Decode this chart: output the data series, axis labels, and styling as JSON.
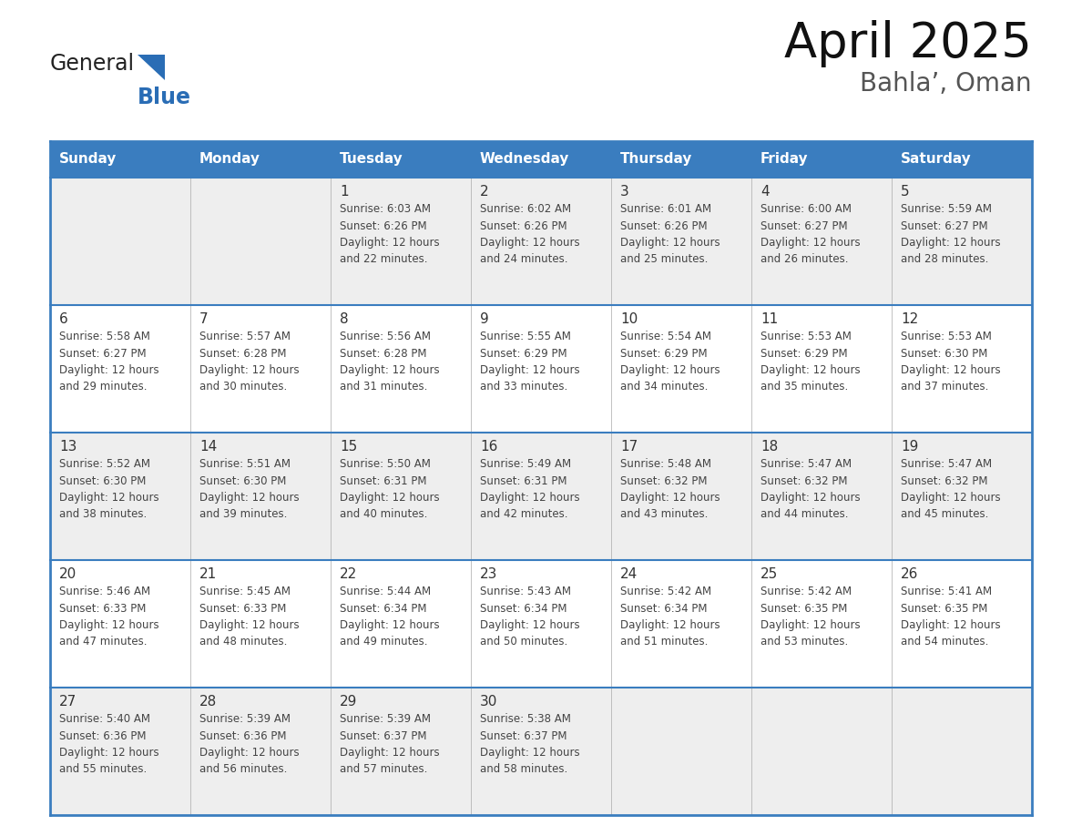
{
  "title": "April 2025",
  "subtitle": "Bahla’, Oman",
  "days_of_week": [
    "Sunday",
    "Monday",
    "Tuesday",
    "Wednesday",
    "Thursday",
    "Friday",
    "Saturday"
  ],
  "header_bg": "#3a7dbf",
  "header_text": "#FFFFFF",
  "row_bg_odd": "#eeeeee",
  "row_bg_even": "#ffffff",
  "border_color": "#3a7dbf",
  "cell_border_color": "#aaaaaa",
  "day_number_color": "#333333",
  "text_color": "#444444",
  "logo_general_color": "#222222",
  "logo_blue_color": "#2a6db5",
  "title_color": "#111111",
  "subtitle_color": "#555555",
  "weeks": [
    [
      {
        "day": null,
        "text": ""
      },
      {
        "day": null,
        "text": ""
      },
      {
        "day": 1,
        "text": "Sunrise: 6:03 AM\nSunset: 6:26 PM\nDaylight: 12 hours\nand 22 minutes."
      },
      {
        "day": 2,
        "text": "Sunrise: 6:02 AM\nSunset: 6:26 PM\nDaylight: 12 hours\nand 24 minutes."
      },
      {
        "day": 3,
        "text": "Sunrise: 6:01 AM\nSunset: 6:26 PM\nDaylight: 12 hours\nand 25 minutes."
      },
      {
        "day": 4,
        "text": "Sunrise: 6:00 AM\nSunset: 6:27 PM\nDaylight: 12 hours\nand 26 minutes."
      },
      {
        "day": 5,
        "text": "Sunrise: 5:59 AM\nSunset: 6:27 PM\nDaylight: 12 hours\nand 28 minutes."
      }
    ],
    [
      {
        "day": 6,
        "text": "Sunrise: 5:58 AM\nSunset: 6:27 PM\nDaylight: 12 hours\nand 29 minutes."
      },
      {
        "day": 7,
        "text": "Sunrise: 5:57 AM\nSunset: 6:28 PM\nDaylight: 12 hours\nand 30 minutes."
      },
      {
        "day": 8,
        "text": "Sunrise: 5:56 AM\nSunset: 6:28 PM\nDaylight: 12 hours\nand 31 minutes."
      },
      {
        "day": 9,
        "text": "Sunrise: 5:55 AM\nSunset: 6:29 PM\nDaylight: 12 hours\nand 33 minutes."
      },
      {
        "day": 10,
        "text": "Sunrise: 5:54 AM\nSunset: 6:29 PM\nDaylight: 12 hours\nand 34 minutes."
      },
      {
        "day": 11,
        "text": "Sunrise: 5:53 AM\nSunset: 6:29 PM\nDaylight: 12 hours\nand 35 minutes."
      },
      {
        "day": 12,
        "text": "Sunrise: 5:53 AM\nSunset: 6:30 PM\nDaylight: 12 hours\nand 37 minutes."
      }
    ],
    [
      {
        "day": 13,
        "text": "Sunrise: 5:52 AM\nSunset: 6:30 PM\nDaylight: 12 hours\nand 38 minutes."
      },
      {
        "day": 14,
        "text": "Sunrise: 5:51 AM\nSunset: 6:30 PM\nDaylight: 12 hours\nand 39 minutes."
      },
      {
        "day": 15,
        "text": "Sunrise: 5:50 AM\nSunset: 6:31 PM\nDaylight: 12 hours\nand 40 minutes."
      },
      {
        "day": 16,
        "text": "Sunrise: 5:49 AM\nSunset: 6:31 PM\nDaylight: 12 hours\nand 42 minutes."
      },
      {
        "day": 17,
        "text": "Sunrise: 5:48 AM\nSunset: 6:32 PM\nDaylight: 12 hours\nand 43 minutes."
      },
      {
        "day": 18,
        "text": "Sunrise: 5:47 AM\nSunset: 6:32 PM\nDaylight: 12 hours\nand 44 minutes."
      },
      {
        "day": 19,
        "text": "Sunrise: 5:47 AM\nSunset: 6:32 PM\nDaylight: 12 hours\nand 45 minutes."
      }
    ],
    [
      {
        "day": 20,
        "text": "Sunrise: 5:46 AM\nSunset: 6:33 PM\nDaylight: 12 hours\nand 47 minutes."
      },
      {
        "day": 21,
        "text": "Sunrise: 5:45 AM\nSunset: 6:33 PM\nDaylight: 12 hours\nand 48 minutes."
      },
      {
        "day": 22,
        "text": "Sunrise: 5:44 AM\nSunset: 6:34 PM\nDaylight: 12 hours\nand 49 minutes."
      },
      {
        "day": 23,
        "text": "Sunrise: 5:43 AM\nSunset: 6:34 PM\nDaylight: 12 hours\nand 50 minutes."
      },
      {
        "day": 24,
        "text": "Sunrise: 5:42 AM\nSunset: 6:34 PM\nDaylight: 12 hours\nand 51 minutes."
      },
      {
        "day": 25,
        "text": "Sunrise: 5:42 AM\nSunset: 6:35 PM\nDaylight: 12 hours\nand 53 minutes."
      },
      {
        "day": 26,
        "text": "Sunrise: 5:41 AM\nSunset: 6:35 PM\nDaylight: 12 hours\nand 54 minutes."
      }
    ],
    [
      {
        "day": 27,
        "text": "Sunrise: 5:40 AM\nSunset: 6:36 PM\nDaylight: 12 hours\nand 55 minutes."
      },
      {
        "day": 28,
        "text": "Sunrise: 5:39 AM\nSunset: 6:36 PM\nDaylight: 12 hours\nand 56 minutes."
      },
      {
        "day": 29,
        "text": "Sunrise: 5:39 AM\nSunset: 6:37 PM\nDaylight: 12 hours\nand 57 minutes."
      },
      {
        "day": 30,
        "text": "Sunrise: 5:38 AM\nSunset: 6:37 PM\nDaylight: 12 hours\nand 58 minutes."
      },
      {
        "day": null,
        "text": ""
      },
      {
        "day": null,
        "text": ""
      },
      {
        "day": null,
        "text": ""
      }
    ]
  ]
}
